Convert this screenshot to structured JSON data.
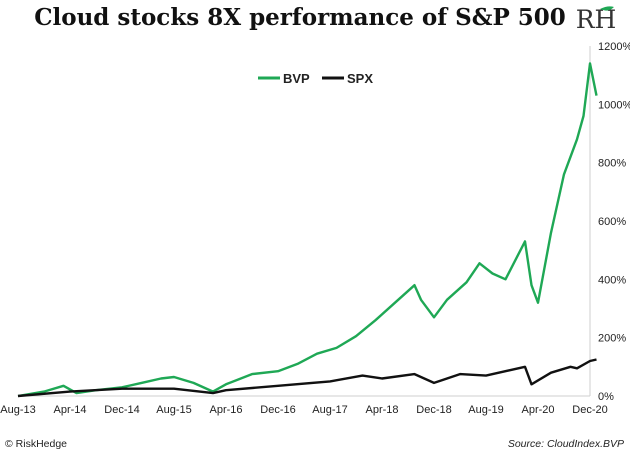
{
  "chart_data": {
    "type": "line",
    "title": "Cloud stocks 8X performance of S&P 500",
    "x_ticks": [
      "Aug-13",
      "Apr-14",
      "Dec-14",
      "Aug-15",
      "Apr-16",
      "Dec-16",
      "Aug-17",
      "Apr-18",
      "Dec-18",
      "Aug-19",
      "Apr-20",
      "Dec-20"
    ],
    "y_ticks": [
      "0%",
      "200%",
      "400%",
      "600%",
      "800%",
      "1000%",
      "1200%"
    ],
    "ylim": [
      0,
      1200
    ],
    "xlim": [
      "Aug-13",
      "Dec-20"
    ],
    "grid": false,
    "legend_position": "top-left",
    "series": [
      {
        "name": "BVP",
        "color": "#1fa855",
        "points": [
          [
            "Aug-13",
            0
          ],
          [
            "Dec-13",
            15
          ],
          [
            "Mar-14",
            35
          ],
          [
            "May-14",
            10
          ],
          [
            "Aug-14",
            20
          ],
          [
            "Dec-14",
            30
          ],
          [
            "Mar-15",
            45
          ],
          [
            "Jun-15",
            60
          ],
          [
            "Aug-15",
            65
          ],
          [
            "Nov-15",
            45
          ],
          [
            "Feb-16",
            15
          ],
          [
            "Apr-16",
            40
          ],
          [
            "Aug-16",
            75
          ],
          [
            "Dec-16",
            85
          ],
          [
            "Mar-17",
            110
          ],
          [
            "Jun-17",
            145
          ],
          [
            "Sep-17",
            165
          ],
          [
            "Dec-17",
            205
          ],
          [
            "Mar-18",
            260
          ],
          [
            "Jun-18",
            320
          ],
          [
            "Sep-18",
            380
          ],
          [
            "Oct-18",
            330
          ],
          [
            "Dec-18",
            270
          ],
          [
            "Feb-19",
            330
          ],
          [
            "May-19",
            390
          ],
          [
            "Jul-19",
            455
          ],
          [
            "Sep-19",
            420
          ],
          [
            "Nov-19",
            400
          ],
          [
            "Feb-20",
            530
          ],
          [
            "Mar-20",
            380
          ],
          [
            "Apr-20",
            320
          ],
          [
            "Jun-20",
            560
          ],
          [
            "Aug-20",
            760
          ],
          [
            "Sep-20",
            820
          ],
          [
            "Oct-20",
            880
          ],
          [
            "Nov-20",
            960
          ],
          [
            "Dec-20",
            1140
          ],
          [
            "Jan-21",
            1030
          ]
        ]
      },
      {
        "name": "SPX",
        "color": "#111111",
        "points": [
          [
            "Aug-13",
            0
          ],
          [
            "Apr-14",
            15
          ],
          [
            "Dec-14",
            25
          ],
          [
            "Aug-15",
            25
          ],
          [
            "Feb-16",
            10
          ],
          [
            "Apr-16",
            20
          ],
          [
            "Dec-16",
            35
          ],
          [
            "Aug-17",
            50
          ],
          [
            "Jan-18",
            70
          ],
          [
            "Apr-18",
            60
          ],
          [
            "Sep-18",
            75
          ],
          [
            "Dec-18",
            45
          ],
          [
            "Apr-19",
            75
          ],
          [
            "Aug-19",
            70
          ],
          [
            "Feb-20",
            100
          ],
          [
            "Mar-20",
            40
          ],
          [
            "Jun-20",
            80
          ],
          [
            "Sep-20",
            100
          ],
          [
            "Oct-20",
            95
          ],
          [
            "Dec-20",
            120
          ],
          [
            "Jan-21",
            125
          ]
        ]
      }
    ]
  },
  "logo": {
    "text": "RH"
  },
  "footer": {
    "left": "© RiskHedge",
    "right": "Source: CloudIndex.BVP"
  }
}
